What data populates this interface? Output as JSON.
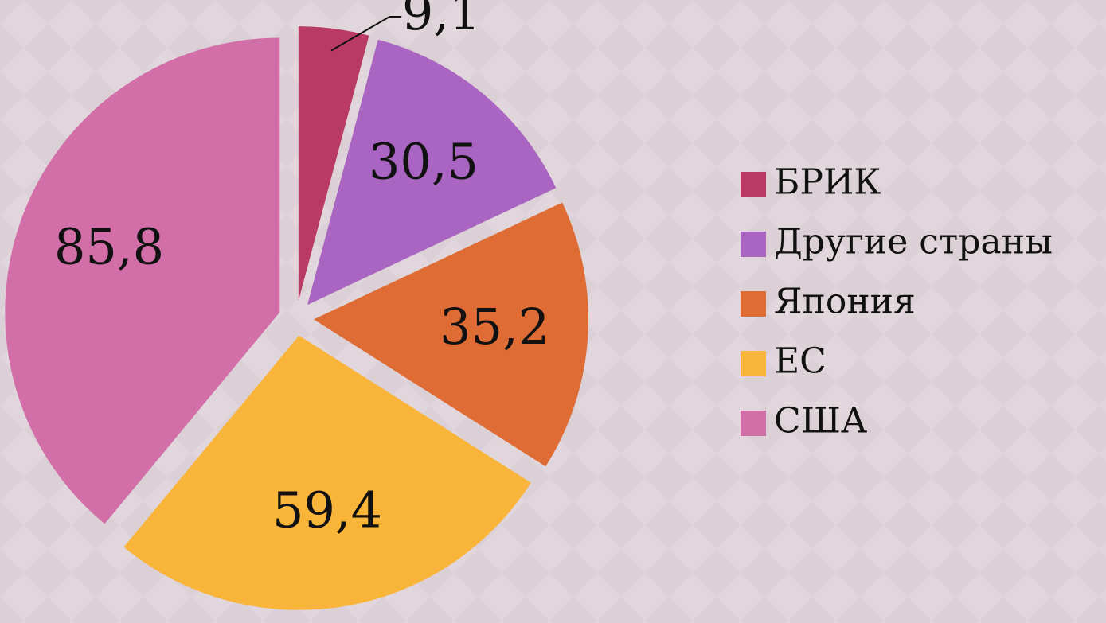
{
  "chart_data": {
    "type": "pie",
    "categories": [
      "БРИК",
      "Другие страны",
      "Япония",
      "ЕС",
      "США"
    ],
    "values": [
      9.1,
      30.5,
      35.2,
      59.4,
      85.8
    ],
    "value_labels": [
      "9,1",
      "30,5",
      "35,2",
      "59,4",
      "85,8"
    ],
    "colors": [
      "#b93a64",
      "#a965c1",
      "#e06c35",
      "#f9b43a",
      "#d26ea8"
    ],
    "legend": "right"
  }
}
